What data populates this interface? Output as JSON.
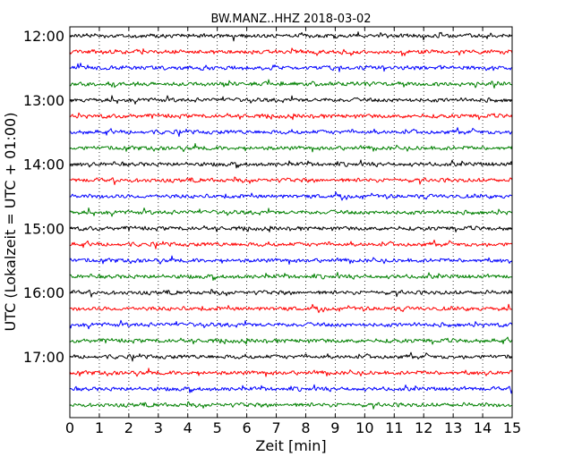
{
  "chart_data": {
    "type": "line",
    "subtype": "helicorder",
    "title": "BW.MANZ..HHZ 2018-03-02",
    "xlabel": "Zeit  [min]",
    "ylabel": "UTC (Lokalzeit = UTC + 01:00)",
    "xlim": [
      0,
      15
    ],
    "x_ticks": [
      0,
      1,
      2,
      3,
      4,
      5,
      6,
      7,
      8,
      9,
      10,
      11,
      12,
      13,
      14,
      15
    ],
    "y_tick_labels": [
      "12:00",
      "13:00",
      "14:00",
      "15:00",
      "16:00",
      "17:00"
    ],
    "trace_interval_min": 15,
    "traces": [
      {
        "start": "12:00",
        "color": "#000000"
      },
      {
        "start": "12:15",
        "color": "#ff0000"
      },
      {
        "start": "12:30",
        "color": "#0000ff"
      },
      {
        "start": "12:45",
        "color": "#008000"
      },
      {
        "start": "13:00",
        "color": "#000000"
      },
      {
        "start": "13:15",
        "color": "#ff0000"
      },
      {
        "start": "13:30",
        "color": "#0000ff"
      },
      {
        "start": "13:45",
        "color": "#008000"
      },
      {
        "start": "14:00",
        "color": "#000000"
      },
      {
        "start": "14:15",
        "color": "#ff0000"
      },
      {
        "start": "14:30",
        "color": "#0000ff"
      },
      {
        "start": "14:45",
        "color": "#008000"
      },
      {
        "start": "15:00",
        "color": "#000000"
      },
      {
        "start": "15:15",
        "color": "#ff0000"
      },
      {
        "start": "15:30",
        "color": "#0000ff"
      },
      {
        "start": "15:45",
        "color": "#008000"
      },
      {
        "start": "16:00",
        "color": "#000000"
      },
      {
        "start": "16:15",
        "color": "#ff0000"
      },
      {
        "start": "16:30",
        "color": "#0000ff"
      },
      {
        "start": "16:45",
        "color": "#008000"
      },
      {
        "start": "17:00",
        "color": "#000000"
      },
      {
        "start": "17:15",
        "color": "#ff0000"
      },
      {
        "start": "17:30",
        "color": "#0000ff"
      },
      {
        "start": "17:45",
        "color": "#008000"
      }
    ],
    "x_grid": "dotted vertical at each minute",
    "legend": "none"
  }
}
